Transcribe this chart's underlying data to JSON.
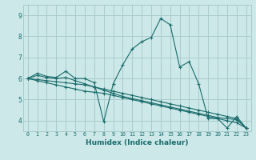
{
  "xlabel": "Humidex (Indice chaleur)",
  "background_color": "#cce8e8",
  "grid_color": "#aacccc",
  "line_color": "#1a6b6b",
  "xlim": [
    -0.5,
    23.5
  ],
  "ylim": [
    3.5,
    9.5
  ],
  "xticks": [
    0,
    1,
    2,
    3,
    4,
    5,
    6,
    7,
    8,
    9,
    10,
    11,
    12,
    13,
    14,
    15,
    16,
    17,
    18,
    19,
    20,
    21,
    22,
    23
  ],
  "yticks": [
    4,
    5,
    6,
    7,
    8,
    9
  ],
  "series": [
    [
      6.0,
      6.25,
      6.1,
      6.05,
      6.35,
      6.0,
      6.0,
      5.8,
      3.95,
      5.75,
      6.65,
      7.4,
      7.75,
      7.95,
      8.85,
      8.55,
      6.55,
      6.8,
      5.75,
      4.1,
      4.1,
      3.65,
      4.2,
      3.65
    ],
    [
      6.0,
      6.15,
      6.05,
      6.0,
      6.05,
      5.9,
      5.75,
      5.6,
      5.45,
      5.3,
      5.15,
      5.05,
      4.95,
      4.85,
      4.75,
      4.65,
      4.55,
      4.45,
      4.35,
      4.25,
      4.15,
      4.1,
      4.05,
      3.65
    ],
    [
      6.0,
      5.95,
      5.9,
      5.85,
      5.8,
      5.75,
      5.7,
      5.6,
      5.5,
      5.4,
      5.3,
      5.2,
      5.1,
      5.0,
      4.9,
      4.8,
      4.7,
      4.6,
      4.5,
      4.4,
      4.3,
      4.2,
      4.1,
      3.65
    ],
    [
      6.0,
      5.9,
      5.8,
      5.7,
      5.6,
      5.5,
      5.4,
      5.35,
      5.3,
      5.2,
      5.1,
      5.0,
      4.9,
      4.8,
      4.7,
      4.6,
      4.5,
      4.4,
      4.3,
      4.2,
      4.1,
      4.0,
      3.9,
      3.65
    ]
  ]
}
